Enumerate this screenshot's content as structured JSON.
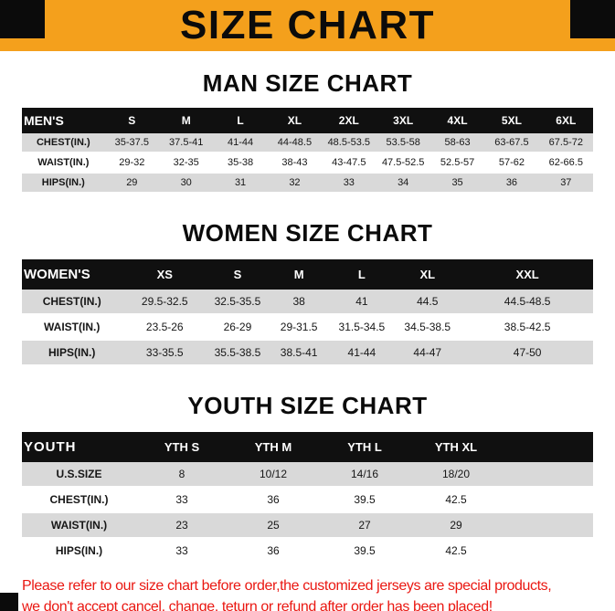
{
  "banner": {
    "title": "SIZE CHART"
  },
  "colors": {
    "banner-orange": "#F4A01C",
    "accent-red": "#EA1812",
    "header-black": "#101010",
    "row-gray": "#D9D9D9"
  },
  "sections": [
    {
      "heading": "MAN SIZE CHART",
      "table": {
        "label": "MEN'S",
        "columns": [
          "S",
          "M",
          "L",
          "XL",
          "2XL",
          "3XL",
          "4XL",
          "5XL",
          "6XL"
        ],
        "rows": [
          {
            "label": "CHEST(IN.)",
            "values": [
              "35-37.5",
              "37.5-41",
              "41-44",
              "44-48.5",
              "48.5-53.5",
              "53.5-58",
              "58-63",
              "63-67.5",
              "67.5-72"
            ]
          },
          {
            "label": "WAIST(IN.)",
            "values": [
              "29-32",
              "32-35",
              "35-38",
              "38-43",
              "43-47.5",
              "47.5-52.5",
              "52.5-57",
              "57-62",
              "62-66.5"
            ]
          },
          {
            "label": "HIPS(IN.)",
            "values": [
              "29",
              "30",
              "31",
              "32",
              "33",
              "34",
              "35",
              "36",
              "37"
            ]
          }
        ]
      }
    },
    {
      "heading": "WOMEN SIZE CHART",
      "table": {
        "label": "WOMEN'S",
        "columns": [
          "XS",
          "S",
          "M",
          "L",
          "XL",
          "XXL"
        ],
        "rows": [
          {
            "label": "CHEST(IN.)",
            "values": [
              "29.5-32.5",
              "32.5-35.5",
              "38",
              "41",
              "44.5",
              "44.5-48.5"
            ]
          },
          {
            "label": "WAIST(IN.)",
            "values": [
              "23.5-26",
              "26-29",
              "29-31.5",
              "31.5-34.5",
              "34.5-38.5",
              "38.5-42.5"
            ]
          },
          {
            "label": "HIPS(IN.)",
            "values": [
              "33-35.5",
              "35.5-38.5",
              "38.5-41",
              "41-44",
              "44-47",
              "47-50"
            ]
          }
        ]
      }
    },
    {
      "heading": "YOUTH SIZE CHART",
      "table": {
        "label": "YOUTH",
        "columns": [
          "YTH S",
          "YTH M",
          "YTH L",
          "YTH XL"
        ],
        "rows": [
          {
            "label": "U.S.SIZE",
            "values": [
              "8",
              "10/12",
              "14/16",
              "18/20"
            ]
          },
          {
            "label": "CHEST(IN.)",
            "values": [
              "33",
              "36",
              "39.5",
              "42.5"
            ]
          },
          {
            "label": "WAIST(IN.)",
            "values": [
              "23",
              "25",
              "27",
              "29"
            ]
          },
          {
            "label": "HIPS(IN.)",
            "values": [
              "33",
              "36",
              "39.5",
              "42.5"
            ]
          }
        ]
      }
    }
  ],
  "footer": {
    "line1": "Please refer to our size chart before order,the customized jerseys are special products,",
    "line2": "we don't accept cancel, change, teturn or refund after order has been placed!"
  }
}
